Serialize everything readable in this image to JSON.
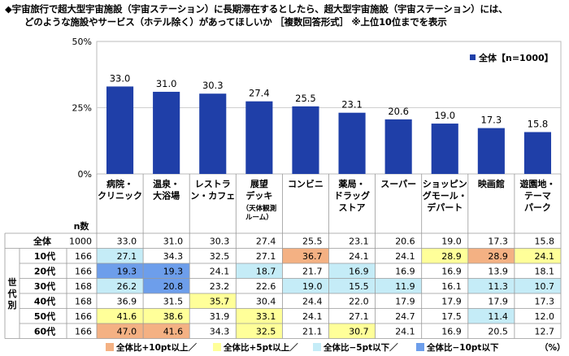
{
  "title_lines": [
    "◆宇宙旅行で超大型宇宙施設（宇宙ステーション）に長期滞在するとしたら、超大型宇宙施設（宇宙ステーション）には、",
    "どのような施設やサービス（ホテル除く）があってほしいか ［複数回答形式］ ※上位10位までを表示"
  ],
  "chart_data": {
    "type": "bar",
    "series_name": "全体【n=1000】",
    "categories": [
      [
        "病院・",
        "クリニック"
      ],
      [
        "温泉・",
        "大浴場"
      ],
      [
        "レストラ",
        "ン・カフェ"
      ],
      [
        "展望",
        "デッキ",
        "（天体観測",
        "ルーム）"
      ],
      [
        "コンビニ"
      ],
      [
        "薬局・",
        "ドラッグ",
        "ストア"
      ],
      [
        "スーパー"
      ],
      [
        "ショッピン",
        "グモール・",
        "デパート"
      ],
      [
        "映画館"
      ],
      [
        "遊園地・",
        "テーマ",
        "パーク"
      ]
    ],
    "values": [
      33.0,
      31.0,
      30.3,
      27.4,
      25.5,
      23.1,
      20.6,
      19.0,
      17.3,
      15.8
    ],
    "y_ticks": [
      "0%",
      "25%",
      "50%"
    ],
    "ylim": [
      0,
      50
    ],
    "bar_color": "#1f3fa8"
  },
  "table": {
    "n_header": "n数",
    "group_label": "世代別",
    "unit": "（%）",
    "rows": [
      {
        "label": "全体",
        "n": "1000",
        "values": [
          "33.0",
          "31.0",
          "30.3",
          "27.4",
          "25.5",
          "23.1",
          "20.6",
          "19.0",
          "17.3",
          "15.8"
        ],
        "hl": [
          "",
          "",
          "",
          "",
          "",
          "",
          "",
          "",
          "",
          ""
        ]
      },
      {
        "label": "10代",
        "n": "166",
        "values": [
          "27.1",
          "34.3",
          "32.5",
          "27.1",
          "36.7",
          "24.1",
          "24.1",
          "28.9",
          "28.9",
          "24.1"
        ],
        "hl": [
          "lb",
          "",
          "",
          "",
          "or",
          "",
          "",
          "yl",
          "or",
          "yl"
        ]
      },
      {
        "label": "20代",
        "n": "166",
        "values": [
          "19.3",
          "19.3",
          "24.1",
          "18.7",
          "21.7",
          "16.9",
          "16.9",
          "16.9",
          "13.9",
          "18.1"
        ],
        "hl": [
          "bl",
          "bl",
          "",
          "lb",
          "",
          "lb",
          "",
          "",
          "",
          ""
        ]
      },
      {
        "label": "30代",
        "n": "168",
        "values": [
          "26.2",
          "20.8",
          "23.2",
          "22.6",
          "19.0",
          "15.5",
          "11.9",
          "16.1",
          "11.3",
          "10.7"
        ],
        "hl": [
          "lb",
          "bl",
          "",
          "",
          "lb",
          "lb",
          "lb",
          "",
          "lb",
          "lb"
        ]
      },
      {
        "label": "40代",
        "n": "168",
        "values": [
          "36.9",
          "31.5",
          "35.7",
          "30.4",
          "24.4",
          "22.0",
          "17.9",
          "17.9",
          "17.9",
          "17.3"
        ],
        "hl": [
          "",
          "",
          "yl",
          "",
          "",
          "",
          "",
          "",
          "",
          ""
        ]
      },
      {
        "label": "50代",
        "n": "166",
        "values": [
          "41.6",
          "38.6",
          "31.9",
          "33.1",
          "24.1",
          "27.1",
          "24.7",
          "17.5",
          "11.4",
          "12.0"
        ],
        "hl": [
          "yl",
          "yl",
          "",
          "yl",
          "",
          "",
          "",
          "",
          "lb",
          ""
        ]
      },
      {
        "label": "60代",
        "n": "166",
        "values": [
          "47.0",
          "41.6",
          "34.3",
          "32.5",
          "21.1",
          "30.7",
          "24.1",
          "16.9",
          "20.5",
          "12.7"
        ],
        "hl": [
          "or",
          "or",
          "",
          "yl",
          "",
          "yl",
          "",
          "",
          "",
          ""
        ]
      }
    ]
  },
  "legend": [
    {
      "key": "or",
      "label": "全体比+10pt以上／",
      "color": "#f4b183"
    },
    {
      "key": "yl",
      "label": "全体比+5pt以上／",
      "color": "#ffff99"
    },
    {
      "key": "lb",
      "label": "全体比−5pt以下／",
      "color": "#c5ecf7"
    },
    {
      "key": "bl",
      "label": "全体比−10pt以下",
      "color": "#6d9eeb"
    }
  ]
}
